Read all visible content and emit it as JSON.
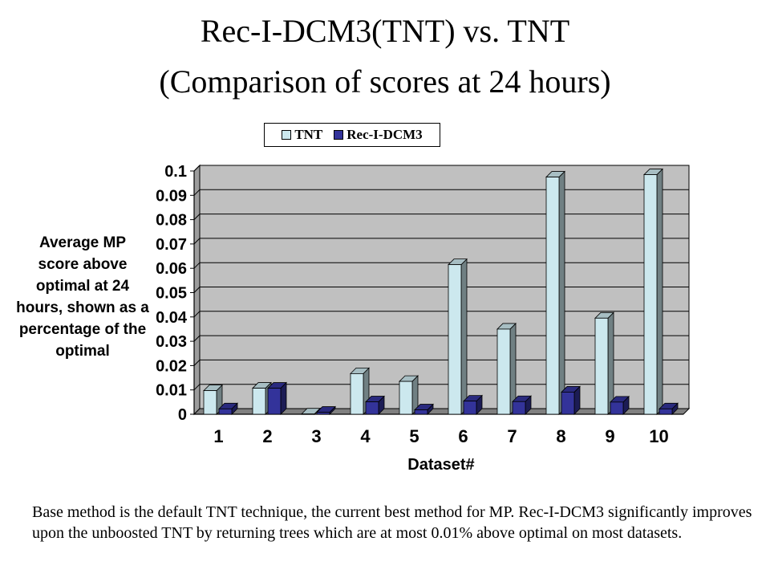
{
  "title": "Rec-I-DCM3(TNT) vs. TNT",
  "subtitle": "(Comparison of scores at 24 hours)",
  "footnote": "Base method is the default TNT technique, the current best method for MP. Rec-I-DCM3 significantly improves upon the unboosted TNT by returning trees which are at most 0.01% above optimal on most datasets.",
  "colors": {
    "tnt": "#cce8ee",
    "rec": "#33339a",
    "plot_bg": "#c0c0c0"
  },
  "chart_data": {
    "type": "bar",
    "title": "Rec-I-DCM3(TNT) vs. TNT",
    "subtitle": "(Comparison of scores at 24 hours)",
    "xlabel": "Dataset#",
    "ylabel": "Average MP score above optimal at 24 hours, shown as a percentage of the optimal",
    "ylabel_lines": [
      "Average MP",
      "score  above",
      "optimal at 24",
      "hours, shown as a",
      "percentage of the",
      "optimal"
    ],
    "categories": [
      "1",
      "2",
      "3",
      "4",
      "5",
      "6",
      "7",
      "8",
      "9",
      "10"
    ],
    "y_ticks": [
      "0",
      "0.01",
      "0.02",
      "0.03",
      "0.04",
      "0.05",
      "0.06",
      "0.07",
      "0.08",
      "0.09",
      "0.1"
    ],
    "ylim": [
      0,
      0.1
    ],
    "legend_position": "top",
    "grid": true,
    "series": [
      {
        "name": "TNT",
        "values": [
          0.0097,
          0.0107,
          0.0001,
          0.0167,
          0.0135,
          0.0615,
          0.035,
          0.0975,
          0.0395,
          0.0985
        ]
      },
      {
        "name": "Rec-I-DCM3",
        "values": [
          0.0022,
          0.0107,
          0.0008,
          0.0051,
          0.0018,
          0.0054,
          0.0052,
          0.0091,
          0.005,
          0.0022
        ]
      }
    ]
  }
}
